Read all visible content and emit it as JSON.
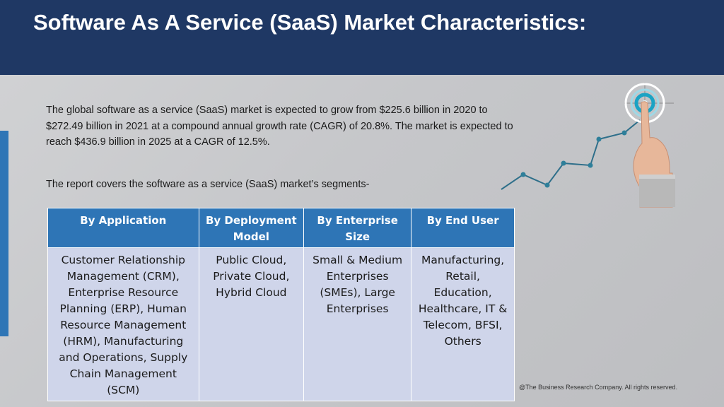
{
  "header": {
    "title": "Software As A Service (SaaS) Market Characteristics:"
  },
  "intro": {
    "text": "The global software as a service (SaaS) market is expected to grow from $225.6 billion in 2020 to $272.49 billion in 2021 at a compound annual growth rate (CAGR) of 20.8%. The market is expected to reach $436.9 billion in 2025 at a CAGR of 12.5%."
  },
  "segments_intro": "The report covers the software as a service (SaaS) market’s segments-",
  "table": {
    "headers": [
      "By Application",
      "By Deployment Model",
      "By Enterprise Size",
      "By End User"
    ],
    "cells": [
      "Customer Relationship Management (CRM), Enterprise Resource Planning (ERP), Human Resource Management (HRM), Manufacturing and Operations, Supply Chain Management (SCM)",
      "Public Cloud, Private Cloud, Hybrid Cloud",
      "Small & Medium Enterprises (SMEs), Large Enterprises",
      "Manufacturing, Retail, Education, Healthcare, IT & Telecom, BFSI, Others"
    ]
  },
  "footer": {
    "copyright": "@The Business Research Company. All rights reserved."
  },
  "colors": {
    "header_bg": "#1f3864",
    "table_header_bg": "#2e75b6",
    "table_cell_bg": "#cfd5ea",
    "accent": "#2e75b6"
  },
  "illustration": {
    "icon": "growth-target-hand-icon"
  }
}
